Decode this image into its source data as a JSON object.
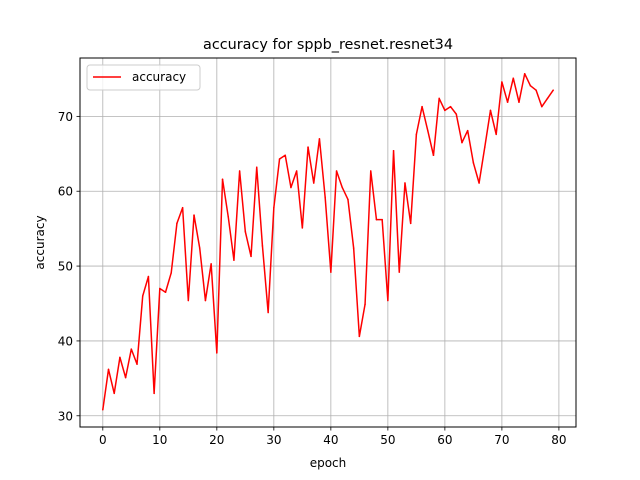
{
  "chart_data": {
    "type": "line",
    "title": "accuracy for sppb_resnet.resnet34",
    "xlabel": "epoch",
    "ylabel": "accuracy",
    "xlim": [
      -4,
      83
    ],
    "ylim": [
      28.5,
      77.8
    ],
    "xticks": [
      0,
      10,
      20,
      30,
      40,
      50,
      60,
      70,
      80
    ],
    "yticks": [
      30,
      40,
      50,
      60,
      70
    ],
    "grid": true,
    "legend_position": "upper-left",
    "series": [
      {
        "name": "accuracy",
        "color": "#ff0000",
        "x": [
          0,
          1,
          2,
          3,
          4,
          5,
          6,
          7,
          8,
          9,
          10,
          11,
          12,
          13,
          14,
          15,
          16,
          17,
          18,
          19,
          20,
          21,
          22,
          23,
          24,
          25,
          26,
          27,
          28,
          29,
          30,
          31,
          32,
          33,
          34,
          35,
          36,
          37,
          38,
          39,
          40,
          41,
          42,
          43,
          44,
          45,
          46,
          47,
          48,
          49,
          50,
          51,
          52,
          53,
          54,
          55,
          56,
          57,
          58,
          59,
          60,
          61,
          62,
          63,
          64,
          65,
          66,
          67,
          68,
          69,
          70,
          71,
          72,
          73,
          74,
          75,
          76,
          77,
          78,
          79
        ],
        "values": [
          30.8,
          36.2,
          33.0,
          37.8,
          35.1,
          38.9,
          36.9,
          46.0,
          48.6,
          33.0,
          47.0,
          46.5,
          49.1,
          55.7,
          57.8,
          45.4,
          56.8,
          52.4,
          45.4,
          50.3,
          38.4,
          61.6,
          56.6,
          50.8,
          62.7,
          54.6,
          51.3,
          63.2,
          52.7,
          43.8,
          57.8,
          64.3,
          64.8,
          60.5,
          62.7,
          55.1,
          65.9,
          61.1,
          67.0,
          59.2,
          49.2,
          62.7,
          60.5,
          58.9,
          52.4,
          40.6,
          44.9,
          62.7,
          56.2,
          56.2,
          45.4,
          65.4,
          49.2,
          61.1,
          55.7,
          67.6,
          71.3,
          68.1,
          64.8,
          72.4,
          70.8,
          71.3,
          70.3,
          66.5,
          68.1,
          63.8,
          61.1,
          65.9,
          70.8,
          67.6,
          74.6,
          71.9,
          75.1,
          71.9,
          75.7,
          74.1,
          73.5,
          71.3,
          72.4,
          73.5
        ]
      }
    ]
  }
}
